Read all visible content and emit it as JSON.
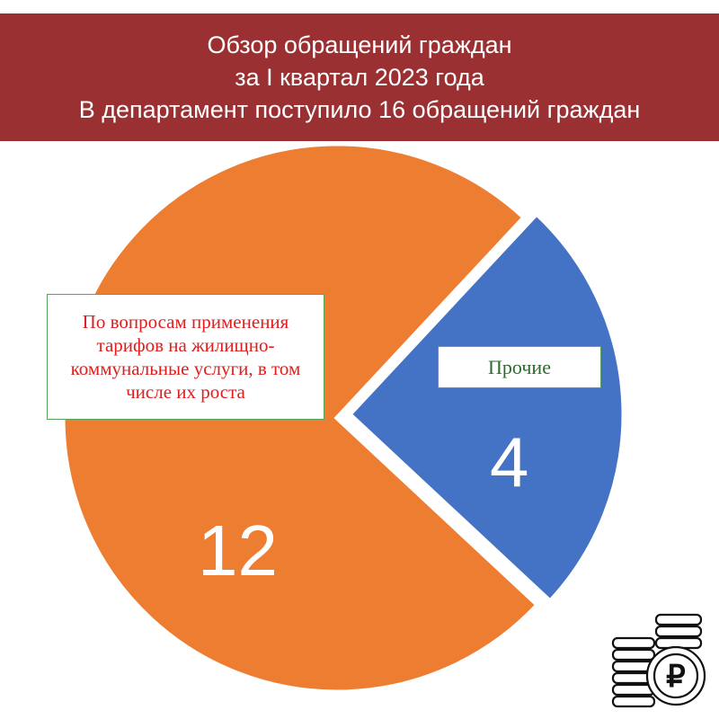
{
  "header": {
    "line1": "Обзор обращений граждан",
    "line2": "за I квартал 2023 года",
    "line3": "В департамент поступило 16 обращений граждан",
    "background_color": "#9b3033"
  },
  "chart_data": {
    "type": "pie",
    "total": 16,
    "slices": [
      {
        "label": "По вопросам применения тарифов на жилищно-коммунальные услуги, в том числе их роста",
        "value": 12,
        "value_label": "12",
        "color": "#ed7d31"
      },
      {
        "label": "Прочие",
        "value": 4,
        "value_label": "4",
        "color": "#4472c4"
      }
    ],
    "legend": "none"
  },
  "icons": {
    "corner_icon": "coins-ruble-icon"
  }
}
